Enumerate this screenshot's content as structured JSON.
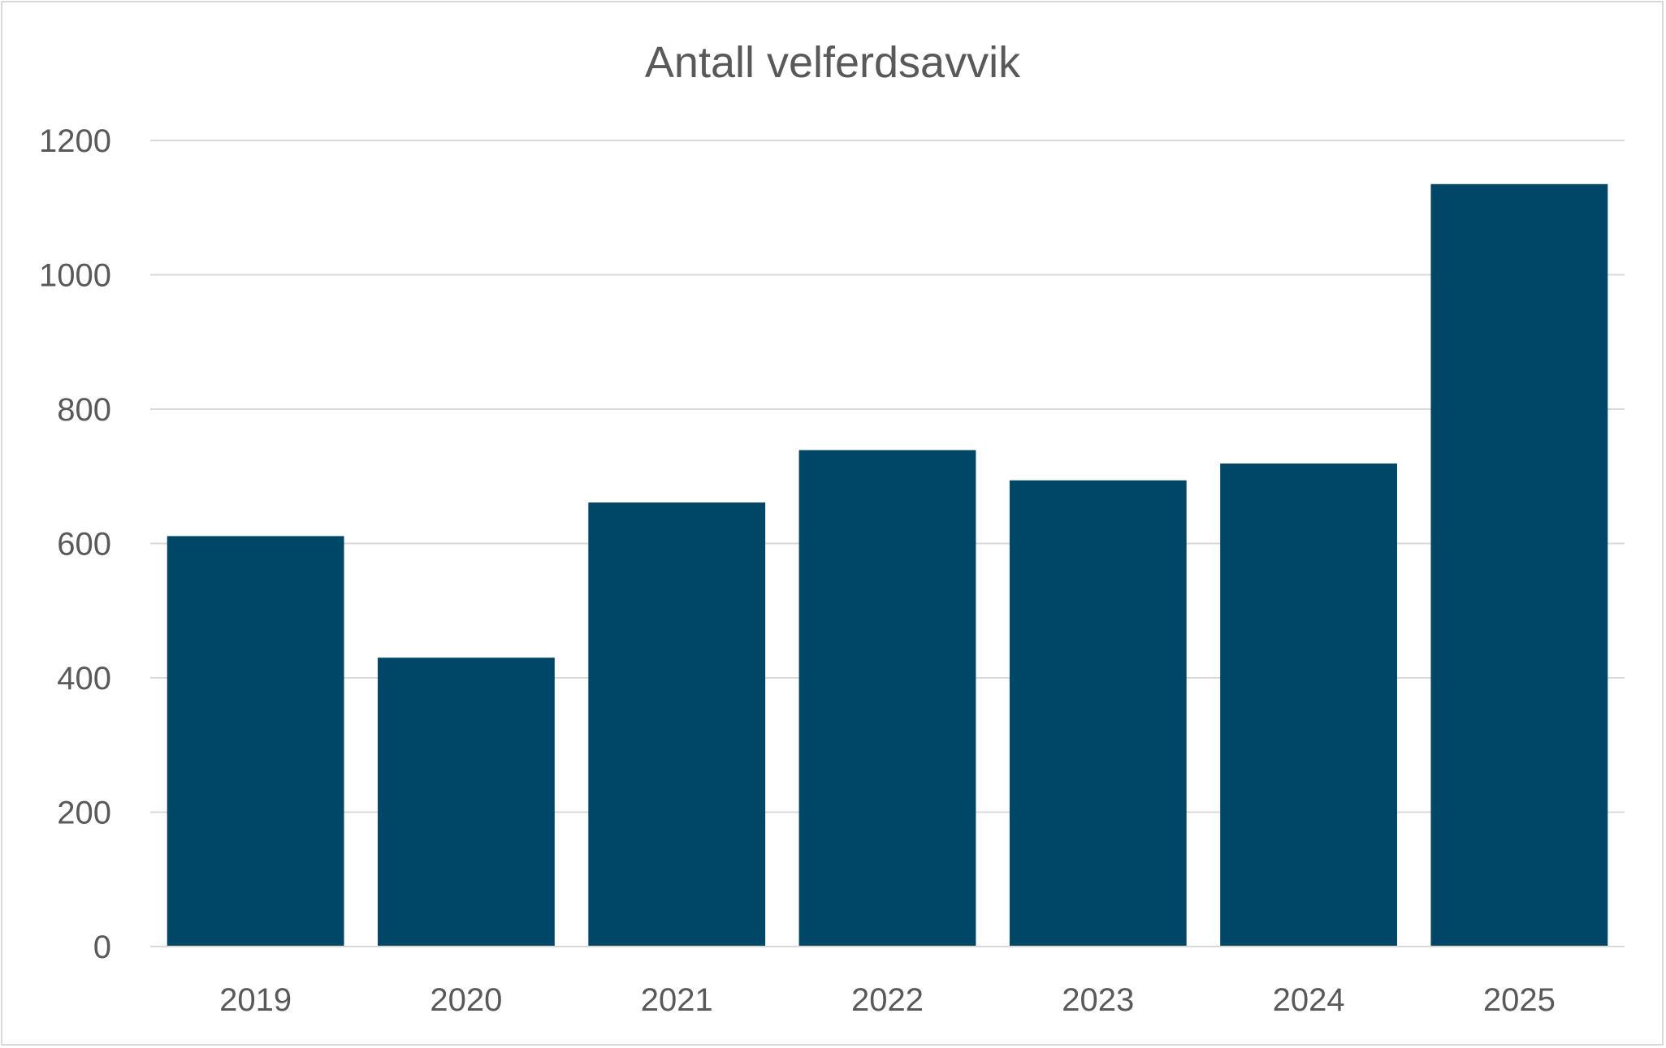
{
  "chart_data": {
    "type": "bar",
    "title": "Antall velferdsavvik",
    "xlabel": "",
    "ylabel": "",
    "categories": [
      "2019",
      "2020",
      "2021",
      "2022",
      "2023",
      "2024",
      "2025"
    ],
    "values": [
      611,
      430,
      661,
      739,
      694,
      719,
      1135
    ],
    "ylim": [
      0,
      1200
    ],
    "yticks": [
      0,
      200,
      400,
      600,
      800,
      1000,
      1200
    ],
    "grid": true,
    "legend": "none",
    "colors": {
      "bar": "#004667",
      "grid": "#d9d9d9",
      "text": "#595959"
    }
  }
}
